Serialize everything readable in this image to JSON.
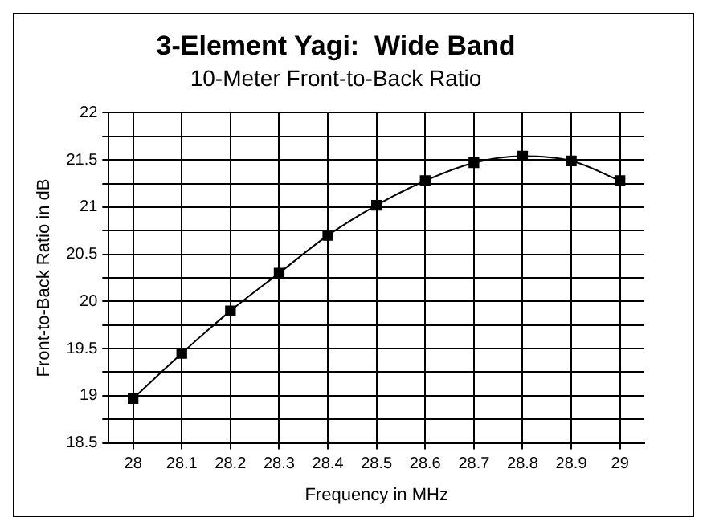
{
  "chart_data": {
    "type": "line",
    "title": "3-Element Yagi:  Wide Band",
    "subtitle": "10-Meter Front-to-Back Ratio",
    "xlabel": "Frequency in MHz",
    "ylabel": "Front-to-Back Ratio in dB",
    "x": [
      28,
      28.1,
      28.2,
      28.3,
      28.4,
      28.5,
      28.6,
      28.7,
      28.8,
      28.9,
      29
    ],
    "series": [
      {
        "color": "#000000",
        "values": [
          18.97,
          19.45,
          19.9,
          20.3,
          20.7,
          21.02,
          21.28,
          21.47,
          21.54,
          21.49,
          21.28
        ]
      }
    ],
    "xlim": [
      27.95,
      29.05
    ],
    "xticks": [
      28,
      28.1,
      28.2,
      28.3,
      28.4,
      28.5,
      28.6,
      28.7,
      28.8,
      28.9,
      29
    ],
    "ylim": [
      18.5,
      22
    ],
    "yticks": [
      18.5,
      {
        "value": 18.75,
        "label": null
      },
      19,
      {
        "value": 19.25,
        "label": null
      },
      19.5,
      {
        "value": 19.75,
        "label": null
      },
      20,
      {
        "value": 20.25,
        "label": null
      },
      20.5,
      {
        "value": 20.75,
        "label": null
      },
      21,
      {
        "value": 21.25,
        "label": null
      },
      21.5,
      {
        "value": 21.75,
        "label": null
      },
      22
    ],
    "grid": true,
    "legend": false,
    "marker": "square",
    "line_style": "solid"
  }
}
